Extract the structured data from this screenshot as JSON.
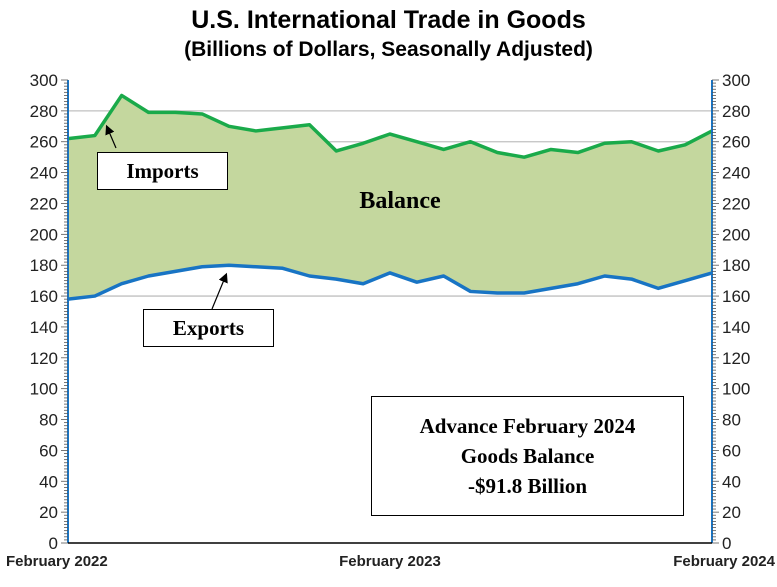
{
  "chart_data": {
    "type": "area",
    "title": "U.S. International Trade in Goods",
    "subtitle": "(Billions of Dollars, Seasonally Adjusted)",
    "xlabel": "",
    "ylabel": "",
    "x_tick_labels": [
      "February 2022",
      "February 2023",
      "February 2024"
    ],
    "x_start": "2022-02",
    "x_end": "2024-02",
    "ylim": [
      0,
      300
    ],
    "y_ticks": [
      0,
      20,
      40,
      60,
      80,
      100,
      120,
      140,
      160,
      180,
      200,
      220,
      240,
      260,
      280,
      300
    ],
    "dual_y_axis": true,
    "series": [
      {
        "name": "Imports",
        "color": "#1aaa4a",
        "values": [
          262,
          264,
          290,
          279,
          279,
          278,
          270,
          267,
          269,
          271,
          254,
          259,
          265,
          260,
          255,
          260,
          253,
          250,
          255,
          253,
          259,
          260,
          254,
          258,
          267
        ]
      },
      {
        "name": "Exports",
        "color": "#1874c4",
        "values": [
          158,
          160,
          168,
          173,
          176,
          179,
          180,
          179,
          178,
          173,
          171,
          168,
          175,
          169,
          173,
          163,
          162,
          162,
          165,
          168,
          173,
          171,
          165,
          170,
          175
        ]
      }
    ],
    "fill_color": "#c4d79e",
    "annotations": {
      "balance_label": "Balance",
      "imports_label": "Imports",
      "exports_label": "Exports",
      "summary_lines": [
        "Advance February 2024",
        "Goods Balance",
        "-$91.8 Billion"
      ]
    }
  }
}
